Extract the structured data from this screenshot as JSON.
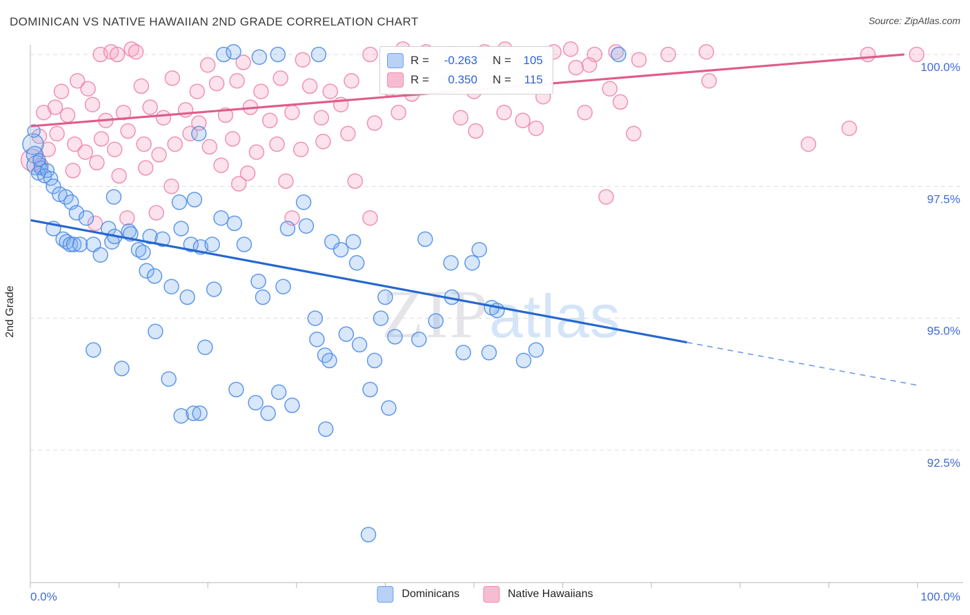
{
  "header": {
    "title": "DOMINICAN VS NATIVE HAWAIIAN 2ND GRADE CORRELATION CHART",
    "source": "Source: ZipAtlas.com"
  },
  "watermark": {
    "zip": "ZIP",
    "atlas": "atlas"
  },
  "stats_box": {
    "rows": [
      {
        "series": "dominicans",
        "r_label": "R =",
        "r": "-0.263",
        "n_label": "N =",
        "n": "105"
      },
      {
        "series": "native_hawaiians",
        "r_label": "R =",
        "r": "0.350",
        "n_label": "N =",
        "n": "115"
      }
    ]
  },
  "axes": {
    "y_title": "2nd Grade",
    "x_min_label": "0.0%",
    "x_max_label": "100.0%"
  },
  "legend": {
    "items": [
      {
        "label": "Dominicans"
      },
      {
        "label": "Native Hawaiians"
      }
    ]
  },
  "colors": {
    "blue_stroke": "#4e8ce8",
    "blue_fill": "#7fb0f0",
    "blue_trend": "#2667cf",
    "pink_stroke": "#ee85ab",
    "pink_fill": "#f5a8c4",
    "pink_trend": "#e05c8a",
    "grid": "#dcdcdc",
    "axis": "#c4c4c4",
    "tick_label": "#3f6ad8"
  },
  "chart_data": {
    "type": "scatter",
    "title": "DOMINICAN VS NATIVE HAWAIIAN 2ND GRADE CORRELATION CHART",
    "xlabel": "",
    "ylabel": "2nd Grade",
    "x_range": [
      0,
      100
    ],
    "y_range": [
      90.0,
      100.3
    ],
    "grid": "horizontal-dashed",
    "legend_position": "bottom-center",
    "x_tick_step_pct": 10,
    "y_ticks": [
      {
        "label": "100.0%",
        "value": 100.0
      },
      {
        "label": "97.5%",
        "value": 97.5
      },
      {
        "label": "95.0%",
        "value": 95.0
      },
      {
        "label": "92.5%",
        "value": 92.5
      }
    ],
    "series": [
      {
        "name": "Native Hawaiians",
        "r": 0.35,
        "n": 115,
        "trend": {
          "start": [
            0,
            98.64
          ],
          "end": [
            98.5,
            100.0
          ],
          "dashed_from": null
        },
        "points": [
          [
            7.9,
            100.0
          ],
          [
            9.1,
            100.05
          ],
          [
            9.8,
            100.0
          ],
          [
            11.4,
            100.1
          ],
          [
            11.9,
            100.05
          ],
          [
            38.3,
            100.0
          ],
          [
            42.0,
            100.1
          ],
          [
            44.6,
            100.05
          ],
          [
            47.5,
            100.0
          ],
          [
            51.2,
            100.05
          ],
          [
            53.5,
            100.1
          ],
          [
            56.0,
            100.0
          ],
          [
            59.0,
            100.05
          ],
          [
            60.9,
            100.1
          ],
          [
            63.6,
            100.0
          ],
          [
            66.0,
            100.05
          ],
          [
            71.9,
            100.0
          ],
          [
            76.2,
            100.05
          ],
          [
            94.4,
            100.0
          ],
          [
            99.9,
            100.0
          ],
          [
            20.0,
            99.8
          ],
          [
            24.0,
            99.85
          ],
          [
            30.7,
            99.9
          ],
          [
            45.5,
            99.8
          ],
          [
            49.0,
            99.75
          ],
          [
            52.5,
            99.8
          ],
          [
            55.0,
            99.7
          ],
          [
            61.5,
            99.75
          ],
          [
            63.0,
            99.8
          ],
          [
            68.6,
            99.9
          ],
          [
            3.5,
            99.3
          ],
          [
            5.3,
            99.5
          ],
          [
            6.5,
            99.35
          ],
          [
            12.5,
            99.4
          ],
          [
            16.0,
            99.55
          ],
          [
            18.8,
            99.3
          ],
          [
            21.0,
            99.45
          ],
          [
            23.3,
            99.5
          ],
          [
            26.0,
            99.3
          ],
          [
            28.2,
            99.55
          ],
          [
            31.5,
            99.4
          ],
          [
            33.8,
            99.3
          ],
          [
            36.2,
            99.5
          ],
          [
            40.5,
            99.35
          ],
          [
            43.0,
            99.25
          ],
          [
            46.8,
            99.45
          ],
          [
            50.0,
            99.3
          ],
          [
            57.8,
            99.2
          ],
          [
            1.5,
            98.9
          ],
          [
            2.8,
            99.0
          ],
          [
            4.2,
            98.85
          ],
          [
            7.0,
            99.05
          ],
          [
            8.5,
            98.75
          ],
          [
            10.5,
            98.9
          ],
          [
            13.5,
            99.0
          ],
          [
            15.0,
            98.8
          ],
          [
            17.5,
            98.95
          ],
          [
            19.0,
            98.7
          ],
          [
            22.0,
            98.85
          ],
          [
            24.8,
            99.0
          ],
          [
            27.0,
            98.75
          ],
          [
            29.5,
            98.9
          ],
          [
            32.8,
            98.8
          ],
          [
            35.0,
            99.05
          ],
          [
            38.8,
            98.7
          ],
          [
            41.5,
            98.9
          ],
          [
            62.5,
            98.9
          ],
          [
            65.3,
            99.35
          ],
          [
            0.2,
            98.0,
            16
          ],
          [
            1.0,
            98.45
          ],
          [
            2.0,
            98.2
          ],
          [
            3.0,
            98.5
          ],
          [
            5.0,
            98.3
          ],
          [
            6.2,
            98.15
          ],
          [
            8.0,
            98.4
          ],
          [
            9.5,
            98.2
          ],
          [
            11.0,
            98.55
          ],
          [
            12.8,
            98.3
          ],
          [
            14.5,
            98.1
          ],
          [
            16.3,
            98.3
          ],
          [
            18.0,
            98.5
          ],
          [
            20.2,
            98.25
          ],
          [
            22.8,
            98.4
          ],
          [
            25.5,
            98.15
          ],
          [
            27.8,
            98.3
          ],
          [
            30.5,
            98.2
          ],
          [
            33.0,
            98.35
          ],
          [
            35.8,
            98.5
          ],
          [
            1.2,
            97.9
          ],
          [
            4.8,
            97.8
          ],
          [
            7.5,
            97.95
          ],
          [
            10.0,
            97.7
          ],
          [
            13.0,
            97.85
          ],
          [
            15.9,
            97.5
          ],
          [
            21.5,
            97.9
          ],
          [
            24.5,
            97.75
          ],
          [
            28.8,
            97.6
          ],
          [
            36.6,
            97.6
          ],
          [
            23.5,
            97.55
          ],
          [
            7.3,
            96.8
          ],
          [
            10.9,
            96.9
          ],
          [
            14.2,
            97.0
          ],
          [
            29.5,
            96.9
          ],
          [
            38.3,
            96.9
          ],
          [
            64.9,
            97.3
          ],
          [
            48.5,
            98.8
          ],
          [
            50.2,
            98.55
          ],
          [
            53.4,
            98.9
          ],
          [
            55.5,
            98.75
          ],
          [
            57.0,
            98.6
          ],
          [
            66.5,
            99.1
          ],
          [
            68.0,
            98.5
          ],
          [
            76.5,
            99.5
          ],
          [
            87.7,
            98.3
          ],
          [
            92.3,
            98.6
          ]
        ]
      },
      {
        "name": "Dominicans",
        "r": -0.263,
        "n": 105,
        "trend": {
          "start": [
            0,
            96.86
          ],
          "end": [
            100,
            93.73
          ],
          "dashed_from": 74
        },
        "points": [
          [
            21.8,
            100.0
          ],
          [
            22.9,
            100.05
          ],
          [
            25.8,
            99.95
          ],
          [
            27.9,
            100.0
          ],
          [
            32.5,
            100.0
          ],
          [
            66.3,
            100.0
          ],
          [
            19.0,
            98.5
          ],
          [
            0.3,
            98.3,
            15
          ],
          [
            0.5,
            98.1,
            12
          ],
          [
            0.7,
            97.9,
            14
          ],
          [
            0.9,
            97.75,
            10
          ],
          [
            1.2,
            97.85,
            10
          ],
          [
            1.6,
            97.7,
            10
          ],
          [
            1.9,
            97.8,
            10
          ],
          [
            2.3,
            97.65,
            10
          ],
          [
            0.4,
            98.55,
            9
          ],
          [
            1.0,
            98.0,
            9
          ],
          [
            2.6,
            97.5
          ],
          [
            3.3,
            97.35
          ],
          [
            4.0,
            97.3
          ],
          [
            4.6,
            97.2
          ],
          [
            5.2,
            97.0
          ],
          [
            9.4,
            97.3
          ],
          [
            16.8,
            97.2
          ],
          [
            18.5,
            97.25
          ],
          [
            30.8,
            97.2
          ],
          [
            2.6,
            96.7
          ],
          [
            3.7,
            96.5
          ],
          [
            4.1,
            96.45
          ],
          [
            4.5,
            96.4
          ],
          [
            4.9,
            96.4
          ],
          [
            5.6,
            96.4
          ],
          [
            6.3,
            96.9
          ],
          [
            7.1,
            96.4
          ],
          [
            7.9,
            96.2
          ],
          [
            8.8,
            96.7
          ],
          [
            9.2,
            96.45
          ],
          [
            9.5,
            96.55
          ],
          [
            11.1,
            96.65
          ],
          [
            11.3,
            96.6
          ],
          [
            12.2,
            96.3
          ],
          [
            12.7,
            96.25
          ],
          [
            13.5,
            96.55
          ],
          [
            14.9,
            96.5
          ],
          [
            17.0,
            96.7
          ],
          [
            18.1,
            96.4
          ],
          [
            19.2,
            96.35
          ],
          [
            20.5,
            96.4
          ],
          [
            21.5,
            96.9
          ],
          [
            23.0,
            96.8
          ],
          [
            24.1,
            96.4
          ],
          [
            29.0,
            96.7
          ],
          [
            31.1,
            96.75
          ],
          [
            34.0,
            96.45
          ],
          [
            35.0,
            96.3
          ],
          [
            36.4,
            96.45
          ],
          [
            36.8,
            96.05
          ],
          [
            44.5,
            96.5
          ],
          [
            47.4,
            96.05
          ],
          [
            49.8,
            96.05
          ],
          [
            50.6,
            96.3
          ],
          [
            13.1,
            95.9
          ],
          [
            14.0,
            95.8
          ],
          [
            15.9,
            95.6
          ],
          [
            17.7,
            95.4
          ],
          [
            20.7,
            95.55
          ],
          [
            25.7,
            95.7
          ],
          [
            26.2,
            95.4
          ],
          [
            28.5,
            95.6
          ],
          [
            40.0,
            95.4
          ],
          [
            52.0,
            95.2
          ],
          [
            47.5,
            95.4
          ],
          [
            52.6,
            95.15
          ],
          [
            39.5,
            95.0
          ],
          [
            32.1,
            95.0
          ],
          [
            32.3,
            94.6
          ],
          [
            33.2,
            94.3
          ],
          [
            33.7,
            94.2
          ],
          [
            35.6,
            94.7
          ],
          [
            14.1,
            94.75
          ],
          [
            19.7,
            94.45
          ],
          [
            37.1,
            94.5
          ],
          [
            41.1,
            94.65
          ],
          [
            48.8,
            94.35
          ],
          [
            51.7,
            94.35
          ],
          [
            55.6,
            94.2
          ],
          [
            10.3,
            94.05
          ],
          [
            38.8,
            94.2
          ],
          [
            43.8,
            94.6
          ],
          [
            7.1,
            94.4
          ],
          [
            45.7,
            94.95
          ],
          [
            57.0,
            94.4
          ],
          [
            15.6,
            93.85
          ],
          [
            17.0,
            93.15
          ],
          [
            18.4,
            93.2
          ],
          [
            19.1,
            93.2
          ],
          [
            23.2,
            93.65
          ],
          [
            25.4,
            93.4
          ],
          [
            26.8,
            93.2
          ],
          [
            28.0,
            93.6
          ],
          [
            29.5,
            93.35
          ],
          [
            33.3,
            92.9
          ],
          [
            38.3,
            93.65
          ],
          [
            40.4,
            93.3
          ],
          [
            38.1,
            90.9
          ]
        ]
      }
    ]
  }
}
